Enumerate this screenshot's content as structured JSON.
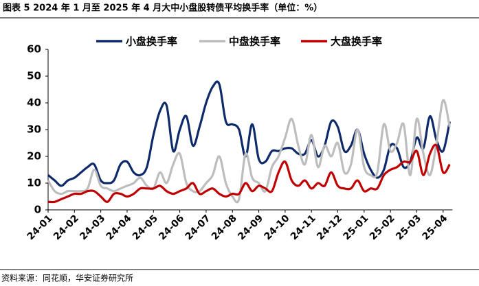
{
  "chart_data": {
    "type": "line",
    "title": "图表 5 2024 年 1 月至 2025 年 4 月大中小盘股转债平均换手率（单位：%）",
    "source": "资料来源：同花顺，华安证券研究所",
    "categories": [
      "24-01",
      null,
      null,
      null,
      "24-02",
      null,
      null,
      null,
      "24-03",
      null,
      null,
      null,
      "24-04",
      null,
      null,
      null,
      "24-05",
      null,
      null,
      null,
      "24-06",
      null,
      null,
      null,
      "24-07",
      null,
      null,
      null,
      "24-08",
      null,
      null,
      null,
      "24-09",
      null,
      null,
      null,
      "24-10",
      null,
      null,
      null,
      "24-11",
      null,
      null,
      null,
      "24-12",
      null,
      null,
      null,
      "25-01",
      null,
      null,
      null,
      "25-02",
      null,
      null,
      null,
      "25-03",
      null,
      null,
      null,
      "25-04",
      null
    ],
    "series": [
      {
        "name": "小盘换手率",
        "color": "#0e2a6b",
        "values": [
          13,
          11,
          9,
          11,
          12,
          14,
          16,
          17,
          11,
          10,
          11,
          17,
          18,
          14,
          13,
          16,
          28,
          37,
          39,
          22,
          30,
          35,
          24,
          31,
          40,
          46,
          47,
          33,
          32,
          30,
          20,
          32,
          19,
          18,
          22,
          22,
          23,
          23,
          21,
          21,
          26,
          20,
          24,
          33,
          31,
          22,
          24,
          30,
          21,
          15,
          12,
          15,
          24,
          23,
          16,
          18,
          27,
          23,
          35,
          26,
          22,
          33
        ]
      },
      {
        "name": "中盘换手率",
        "color": "#bdbdbd",
        "values": [
          11,
          7,
          6,
          7,
          7,
          7,
          8,
          15,
          9,
          8,
          7,
          8,
          9,
          10,
          12,
          9,
          8,
          14,
          10,
          17,
          21,
          10,
          7,
          7,
          10,
          13,
          20,
          10,
          5,
          4,
          21,
          12,
          10,
          7,
          16,
          20,
          27,
          34,
          24,
          17,
          28,
          16,
          24,
          20,
          25,
          14,
          17,
          30,
          16,
          13,
          14,
          32,
          22,
          25,
          32,
          13,
          34,
          21,
          13,
          25,
          41,
          31
        ]
      },
      {
        "name": "大盘换手率",
        "color": "#c00000",
        "values": [
          3,
          3,
          4,
          5,
          6,
          6,
          7,
          7,
          5,
          3,
          6,
          6,
          5,
          6,
          8,
          8,
          8,
          9,
          7,
          6,
          7,
          8,
          10,
          6,
          7,
          8,
          6,
          5,
          6,
          6,
          10,
          7,
          9,
          8,
          7,
          14,
          18,
          11,
          9,
          11,
          8,
          10,
          9,
          14,
          9,
          8,
          8,
          11,
          7,
          8,
          8,
          13,
          15,
          16,
          18,
          18,
          22,
          13,
          21,
          24,
          14,
          17
        ]
      }
    ],
    "ylim": [
      0,
      60
    ],
    "yticks": [
      0,
      10,
      20,
      30,
      40,
      50,
      60
    ],
    "grid": false,
    "legend": "top"
  }
}
